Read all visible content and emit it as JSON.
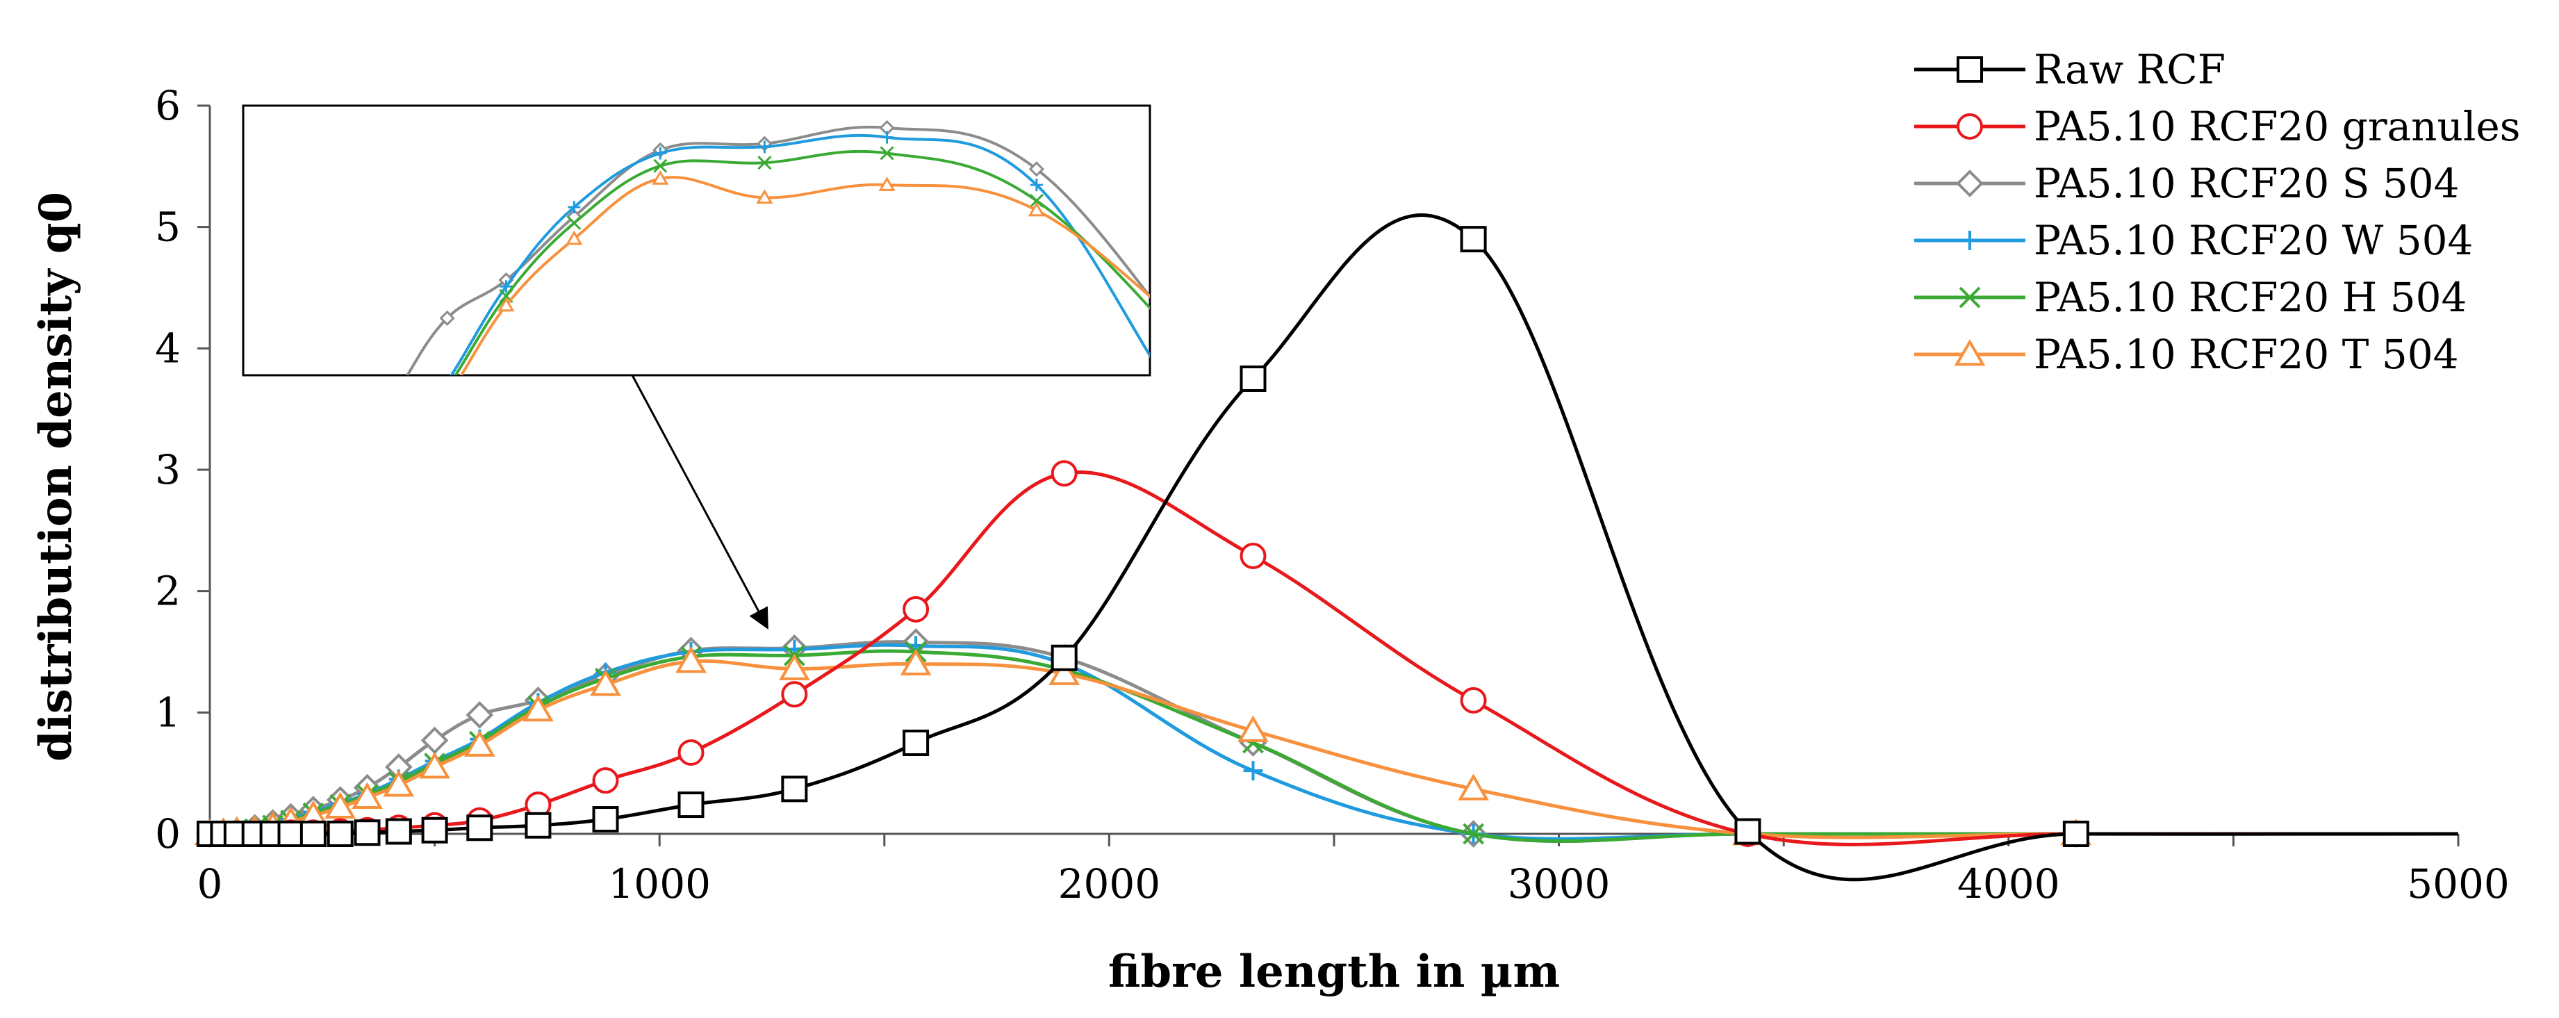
{
  "chart_data": {
    "type": "line",
    "title": "",
    "xlabel": "fibre length in µm",
    "ylabel": "distribution density q0",
    "xlim": [
      0,
      5000
    ],
    "ylim": [
      0,
      6
    ],
    "xticks": [
      0,
      1000,
      2000,
      3000,
      4000,
      5000
    ],
    "yticks": [
      0,
      1,
      2,
      3,
      4,
      5,
      6
    ],
    "xtick_labels": [
      "0",
      "1000",
      "2000",
      "3000",
      "4000",
      "5000"
    ],
    "ytick_labels": [
      "0",
      "1",
      "2",
      "3",
      "4",
      "5",
      "6"
    ],
    "legend_position": "top-right",
    "inset": {
      "description": "zoomed view of peak region",
      "points_to": [
        1250,
        1.6
      ]
    },
    "series": [
      {
        "name": "Raw RCF",
        "color": "#000000",
        "marker": "square",
        "x": [
          0,
          30,
          60,
          100,
          140,
          180,
          230,
          290,
          350,
          420,
          500,
          600,
          730,
          880,
          1070,
          1300,
          1570,
          1900,
          2320,
          2810,
          3420,
          4150,
          5000
        ],
        "y": [
          0,
          0,
          0,
          0,
          0,
          0,
          0,
          0,
          0.01,
          0.02,
          0.03,
          0.05,
          0.07,
          0.12,
          0.24,
          0.37,
          0.75,
          1.45,
          3.75,
          4.9,
          0.02,
          0,
          0
        ]
      },
      {
        "name": "PA5.10 RCF20 granules",
        "color": "#e8191c",
        "marker": "circle",
        "x": [
          0,
          30,
          60,
          100,
          140,
          180,
          230,
          290,
          350,
          420,
          500,
          600,
          730,
          880,
          1070,
          1300,
          1570,
          1900,
          2320,
          2810,
          3420,
          4150,
          5000
        ],
        "y": [
          0,
          0,
          0,
          0,
          0,
          0.01,
          0.01,
          0.02,
          0.03,
          0.05,
          0.07,
          0.11,
          0.24,
          0.44,
          0.67,
          1.15,
          1.85,
          2.97,
          2.29,
          1.1,
          0,
          0,
          0
        ]
      },
      {
        "name": "PA5.10 RCF20 S 504",
        "color": "#8c8c8c",
        "marker": "diamond",
        "x": [
          0,
          30,
          60,
          100,
          140,
          180,
          230,
          290,
          350,
          420,
          500,
          600,
          730,
          880,
          1070,
          1300,
          1570,
          1900,
          2320,
          2810,
          3420,
          4150,
          5000
        ],
        "y": [
          0,
          0.01,
          0.02,
          0.05,
          0.09,
          0.14,
          0.2,
          0.28,
          0.38,
          0.55,
          0.77,
          0.98,
          1.1,
          1.3,
          1.51,
          1.53,
          1.58,
          1.45,
          0.75,
          0,
          0,
          0,
          0
        ]
      },
      {
        "name": "PA5.10 RCF20 W 504",
        "color": "#1f9bde",
        "marker": "plus",
        "x": [
          0,
          30,
          60,
          100,
          140,
          180,
          230,
          290,
          350,
          420,
          500,
          600,
          730,
          880,
          1070,
          1300,
          1570,
          1900,
          2320,
          2810,
          3420,
          4150,
          5000
        ],
        "y": [
          0,
          0.01,
          0.02,
          0.04,
          0.07,
          0.12,
          0.18,
          0.25,
          0.33,
          0.45,
          0.6,
          0.78,
          1.08,
          1.33,
          1.5,
          1.52,
          1.55,
          1.4,
          0.52,
          0,
          0,
          0,
          0
        ]
      },
      {
        "name": "PA5.10 RCF20 H 504",
        "color": "#3aaa35",
        "marker": "x",
        "x": [
          0,
          30,
          60,
          100,
          140,
          180,
          230,
          290,
          350,
          420,
          500,
          600,
          730,
          880,
          1070,
          1300,
          1570,
          1900,
          2320,
          2810,
          3420,
          4150,
          5000
        ],
        "y": [
          0,
          0.01,
          0.02,
          0.04,
          0.07,
          0.11,
          0.17,
          0.24,
          0.32,
          0.43,
          0.58,
          0.76,
          1.05,
          1.28,
          1.46,
          1.47,
          1.5,
          1.35,
          0.75,
          0,
          0,
          0,
          0
        ]
      },
      {
        "name": "PA5.10 RCF20 T 504",
        "color": "#f7913d",
        "marker": "triangle",
        "x": [
          0,
          30,
          60,
          100,
          140,
          180,
          230,
          290,
          350,
          420,
          500,
          600,
          730,
          880,
          1070,
          1300,
          1570,
          1900,
          2320,
          2810,
          3420,
          4150,
          5000
        ],
        "y": [
          0,
          0.01,
          0.02,
          0.03,
          0.06,
          0.1,
          0.15,
          0.22,
          0.3,
          0.4,
          0.55,
          0.73,
          1.02,
          1.23,
          1.42,
          1.36,
          1.4,
          1.32,
          0.85,
          0.37,
          0,
          0,
          0
        ]
      }
    ]
  }
}
